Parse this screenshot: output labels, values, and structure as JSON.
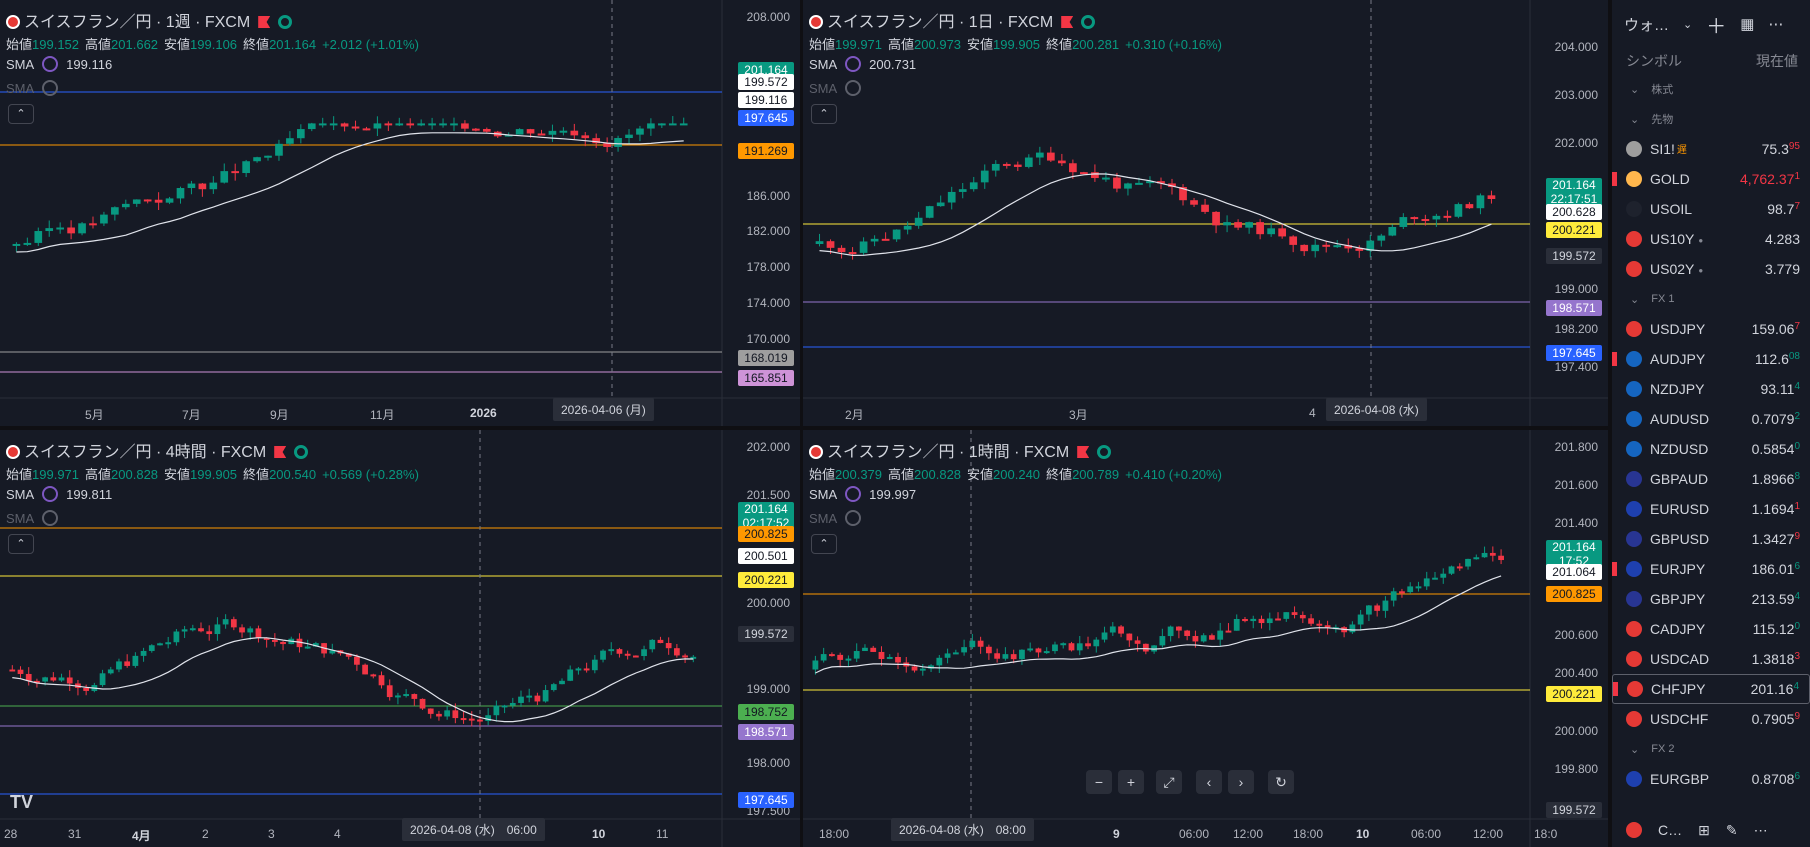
{
  "colors": {
    "up": "#089981",
    "down": "#f23645",
    "sma": "#e0e3eb",
    "orange": "#ff9800",
    "yellow": "#ffeb3b",
    "purple": "#9575cd",
    "blue": "#2962ff",
    "green": "#4caf50",
    "gray": "#9e9e9e",
    "magenta": "#ce93d8"
  },
  "panes": [
    {
      "title": "スイスフラン／円 · 1週 · FXCM",
      "ohlc": {
        "o_label": "始値",
        "o": "199.152",
        "h_label": "高値",
        "h": "201.662",
        "l_label": "安値",
        "l": "199.106",
        "c_label": "終値",
        "c": "201.164",
        "chg": "+2.012 (+1.01%)"
      },
      "sma_label": "SMA",
      "sma_value": "199.116",
      "sma2_label": "SMA",
      "yticks": [
        "208.000",
        "186.000",
        "182.000",
        "178.000",
        "174.000",
        "170.000"
      ],
      "xticks": [
        "5月",
        "7月",
        "9月",
        "11月",
        "2026",
        "3"
      ],
      "xtag": "2026-04-06 (月)",
      "tags": [
        {
          "t": "201.164",
          "c": "up"
        },
        {
          "t": "199.572",
          "c": "w"
        },
        {
          "t": "199.116",
          "c": "w"
        },
        {
          "t": "197.645",
          "c": "blue"
        },
        {
          "t": "191.269",
          "c": "orange"
        },
        {
          "t": "168.019",
          "c": "gray"
        },
        {
          "t": "165.851",
          "c": "magenta"
        }
      ]
    },
    {
      "title": "スイスフラン／円 · 1日 · FXCM",
      "ohlc": {
        "o_label": "始値",
        "o": "199.971",
        "h_label": "高値",
        "h": "200.973",
        "l_label": "安値",
        "l": "199.905",
        "c_label": "終値",
        "c": "200.281",
        "chg": "+0.310 (+0.16%)"
      },
      "sma_label": "SMA",
      "sma_value": "200.731",
      "sma2_label": "SMA",
      "yticks": [
        "204.000",
        "203.000",
        "202.000",
        "199.000",
        "198.200",
        "197.400"
      ],
      "xticks": [
        "2月",
        "3月",
        "4"
      ],
      "xtag": "2026-04-08 (水)",
      "tags": [
        {
          "t": "201.164",
          "t2": "22:17:51",
          "c": "up"
        },
        {
          "t": "200.628",
          "c": "w"
        },
        {
          "t": "200.221",
          "c": "yellow"
        },
        {
          "t": "199.572",
          "c": "dk"
        },
        {
          "t": "198.571",
          "c": "purple"
        },
        {
          "t": "197.645",
          "c": "blue"
        }
      ]
    },
    {
      "title": "スイスフラン／円 · 4時間 · FXCM",
      "ohlc": {
        "o_label": "始値",
        "o": "199.971",
        "h_label": "高値",
        "h": "200.828",
        "l_label": "安値",
        "l": "199.905",
        "c_label": "終値",
        "c": "200.540",
        "chg": "+0.569 (+0.28%)"
      },
      "sma_label": "SMA",
      "sma_value": "199.811",
      "sma2_label": "SMA",
      "yticks": [
        "202.000",
        "201.500",
        "200.000",
        "199.000",
        "198.000",
        "197.500"
      ],
      "xticks": [
        "28",
        "31",
        "4月",
        "2",
        "3",
        "4",
        "10",
        "11"
      ],
      "xtag": "2026-04-08 (水)　06:00",
      "tags": [
        {
          "t": "201.164",
          "t2": "02:17:52",
          "c": "up"
        },
        {
          "t": "200.825",
          "c": "orange"
        },
        {
          "t": "200.501",
          "c": "w"
        },
        {
          "t": "200.221",
          "c": "yellow"
        },
        {
          "t": "199.572",
          "c": "dk"
        },
        {
          "t": "198.752",
          "c": "green"
        },
        {
          "t": "198.571",
          "c": "purple"
        },
        {
          "t": "197.645",
          "c": "blue"
        }
      ]
    },
    {
      "title": "スイスフラン／円 · 1時間 · FXCM",
      "ohlc": {
        "o_label": "始値",
        "o": "200.379",
        "h_label": "高値",
        "h": "200.828",
        "l_label": "安値",
        "l": "200.240",
        "c_label": "終値",
        "c": "200.789",
        "chg": "+0.410 (+0.20%)"
      },
      "sma_label": "SMA",
      "sma_value": "199.997",
      "sma2_label": "SMA",
      "yticks": [
        "201.800",
        "201.600",
        "201.400",
        "200.600",
        "200.400",
        "200.000",
        "199.800"
      ],
      "xticks": [
        "18:00",
        "18:00",
        "9",
        "06:00",
        "12:00",
        "18:00",
        "10",
        "06:00",
        "12:00",
        "18:0"
      ],
      "xtag": "2026-04-08 (水)　08:00",
      "tags": [
        {
          "t": "201.164",
          "t2": "17:52",
          "c": "up"
        },
        {
          "t": "201.064",
          "c": "w"
        },
        {
          "t": "200.825",
          "c": "orange"
        },
        {
          "t": "200.221",
          "c": "yellow"
        },
        {
          "t": "199.572",
          "c": "dk"
        }
      ]
    }
  ],
  "watchlist": {
    "title": "ウォ…",
    "col_symbol": "シンボル",
    "col_price": "現在値",
    "groups": [
      {
        "name": "株式",
        "items": []
      },
      {
        "name": "先物",
        "items": [
          {
            "sym": "SI1!",
            "price": "75.3",
            "last": "95",
            "badge": "遅",
            "ic": "#9e9e9e"
          },
          {
            "sym": "GOLD",
            "price": "4,762.37",
            "last": "1",
            "ic": "#ffb74d",
            "red": true,
            "flag": true
          },
          {
            "sym": "USOIL",
            "price": "98.7",
            "last": "7",
            "ic": "#1e222d"
          },
          {
            "sym": "US10Y",
            "price": "4.283",
            "last": "",
            "ic": "#e53935",
            "dot": "●"
          },
          {
            "sym": "US02Y",
            "price": "3.779",
            "last": "",
            "ic": "#e53935",
            "dot": "●"
          }
        ]
      },
      {
        "name": "FX 1",
        "items": [
          {
            "sym": "USDJPY",
            "price": "159.06",
            "last": "7",
            "ic": "#e53935"
          },
          {
            "sym": "AUDJPY",
            "price": "112.6",
            "last": "08",
            "ic": "#1565c0",
            "flag": true
          },
          {
            "sym": "NZDJPY",
            "price": "93.11",
            "last": "4",
            "ic": "#1565c0"
          },
          {
            "sym": "AUDUSD",
            "price": "0.7079",
            "last": "2",
            "ic": "#1565c0"
          },
          {
            "sym": "NZDUSD",
            "price": "0.5854",
            "last": "0",
            "ic": "#1565c0"
          },
          {
            "sym": "GBPAUD",
            "price": "1.8966",
            "last": "8",
            "ic": "#283593"
          },
          {
            "sym": "EURUSD",
            "price": "1.1694",
            "last": "1",
            "ic": "#1e40af"
          },
          {
            "sym": "GBPUSD",
            "price": "1.3427",
            "last": "9",
            "ic": "#283593"
          },
          {
            "sym": "EURJPY",
            "price": "186.01",
            "last": "6",
            "ic": "#1e40af",
            "flag": true
          },
          {
            "sym": "GBPJPY",
            "price": "213.59",
            "last": "4",
            "ic": "#283593"
          },
          {
            "sym": "CADJPY",
            "price": "115.12",
            "last": "0",
            "ic": "#e53935"
          },
          {
            "sym": "USDCAD",
            "price": "1.3818",
            "last": "3",
            "ic": "#e53935"
          },
          {
            "sym": "CHFJPY",
            "price": "201.16",
            "last": "4",
            "ic": "#e53935",
            "flag": true,
            "sel": true
          },
          {
            "sym": "USDCHF",
            "price": "0.7905",
            "last": "9",
            "ic": "#e53935"
          }
        ]
      },
      {
        "name": "FX 2",
        "items": [
          {
            "sym": "EURGBP",
            "price": "0.8708",
            "last": "6",
            "ic": "#1e40af"
          }
        ]
      }
    ],
    "bottom_label": "C…"
  },
  "footer": {
    "logo": "TV"
  }
}
